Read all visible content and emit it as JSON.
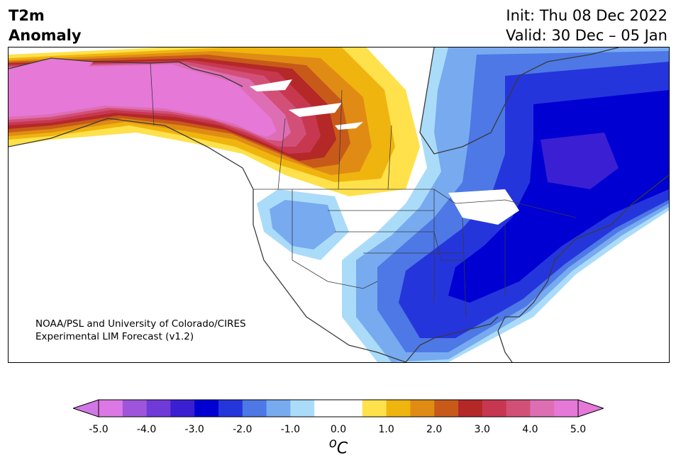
{
  "header": {
    "title_line1": "T2m",
    "title_line2": "Anomaly",
    "init_label": "Init: Thu 08 Dec 2022",
    "valid_label": "Valid: 30 Dec – 05 Jan"
  },
  "credits": {
    "line1": "NOAA/PSL and University of Colorado/CIRES",
    "line2": "Experimental LIM Forecast (v1.2)"
  },
  "colorbar": {
    "ticks": [
      "-5.0",
      "-4.0",
      "-3.0",
      "-2.0",
      "-1.0",
      "0.0",
      "1.0",
      "2.0",
      "3.0",
      "4.0",
      "5.0"
    ],
    "units": "oC",
    "colors": [
      "#dc78e6",
      "#9e55dc",
      "#6f3ad8",
      "#3b1fd2",
      "#0000d2",
      "#2535dc",
      "#4d78e6",
      "#78aaf0",
      "#aadcfa",
      "#ffffff",
      "#ffffff",
      "#ffe14b",
      "#f0b40f",
      "#e08c14",
      "#c85a19",
      "#b42828",
      "#c83750",
      "#d25078",
      "#de6eb4",
      "#e678d8"
    ],
    "min_color": "#d278e6",
    "max_color": "#e678d8"
  },
  "map": {
    "region": "North America",
    "field": "2m temperature anomaly",
    "warm_anomaly_color": "#e678d8",
    "cold_anomaly_color": "#0000d2"
  }
}
